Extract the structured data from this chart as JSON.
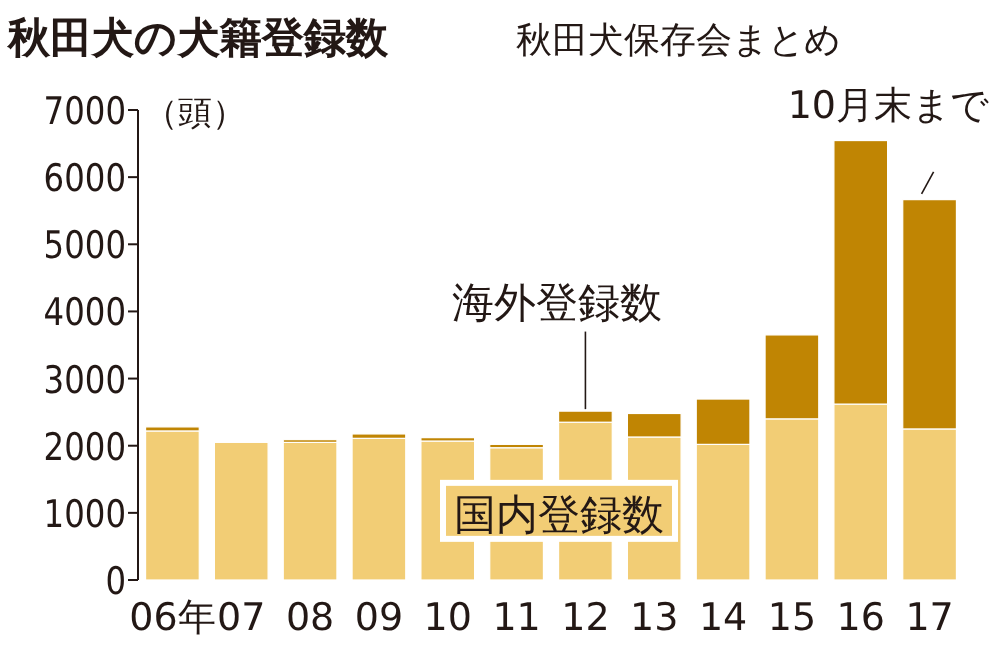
{
  "chart_data": {
    "type": "bar",
    "stacked": true,
    "title": "秋田犬の犬籍登録数",
    "subtitle": "秋田犬保存会まとめ",
    "ylabel": "（頭）",
    "categories": [
      "06年",
      "07",
      "08",
      "09",
      "10",
      "11",
      "12",
      "13",
      "14",
      "15",
      "16",
      "17"
    ],
    "series": [
      {
        "name": "国内登録数",
        "color": "#f2cd75",
        "values": [
          2220,
          2050,
          2050,
          2110,
          2070,
          1970,
          2350,
          2130,
          2020,
          2400,
          2620,
          2250
        ]
      },
      {
        "name": "海外登録数",
        "color": "#c08503",
        "values": [
          60,
          0,
          40,
          65,
          50,
          50,
          165,
          350,
          675,
          1250,
          3925,
          3415
        ]
      }
    ],
    "ylim": [
      0,
      7000
    ],
    "yticks": [
      0,
      1000,
      2000,
      3000,
      4000,
      5000,
      6000,
      7000
    ],
    "annotations": [
      {
        "text": "10月末まで",
        "x": "17",
        "y": 5660
      }
    ]
  }
}
